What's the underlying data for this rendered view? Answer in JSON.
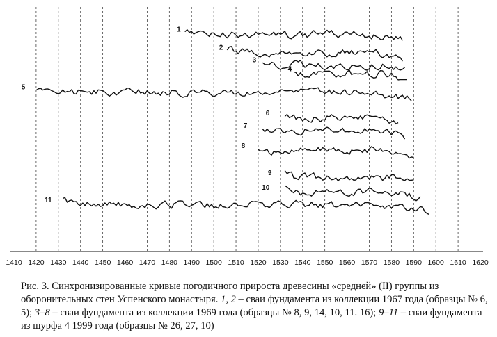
{
  "chart_data": {
    "type": "line",
    "title": "",
    "xlabel": "",
    "ylabel": "",
    "xlim": [
      1410,
      1620
    ],
    "grid": "vertical-dashed",
    "x_ticks": [
      1410,
      1420,
      1430,
      1440,
      1450,
      1460,
      1470,
      1480,
      1490,
      1500,
      1510,
      1520,
      1530,
      1540,
      1550,
      1560,
      1570,
      1580,
      1590,
      1600,
      1610,
      1620
    ],
    "series": [
      {
        "name": "1",
        "start": 1487,
        "end": 1585,
        "level": 0.955,
        "label_x": 1487,
        "color": "#111111"
      },
      {
        "name": "2",
        "start": 1506,
        "end": 1585,
        "level": 0.875,
        "label_x": 1506,
        "color": "#111111"
      },
      {
        "name": "3",
        "start": 1522,
        "end": 1586,
        "level": 0.82,
        "label_x": 1521,
        "color": "#111111"
      },
      {
        "name": "4",
        "start": 1536,
        "end": 1587,
        "level": 0.78,
        "label_x": 1537,
        "color": "#111111"
      },
      {
        "name": "5",
        "start": 1420,
        "end": 1589,
        "level": 0.7,
        "label_x": 1417,
        "color": "#111111"
      },
      {
        "name": "6",
        "start": 1532,
        "end": 1583,
        "level": 0.585,
        "label_x": 1527,
        "color": "#111111"
      },
      {
        "name": "7",
        "start": 1522,
        "end": 1586,
        "level": 0.53,
        "label_x": 1517,
        "color": "#111111"
      },
      {
        "name": "8",
        "start": 1520,
        "end": 1590,
        "level": 0.44,
        "label_x": 1516,
        "color": "#111111"
      },
      {
        "name": "9",
        "start": 1532,
        "end": 1590,
        "level": 0.32,
        "label_x": 1528,
        "color": "#111111"
      },
      {
        "name": "10",
        "start": 1532,
        "end": 1593,
        "level": 0.255,
        "label_x": 1527,
        "color": "#111111"
      },
      {
        "name": "11",
        "start": 1432,
        "end": 1597,
        "level": 0.2,
        "label_x": 1429,
        "color": "#111111"
      }
    ],
    "note_values": "Curves are standardized ring-width indices offset vertically; level is relative vertical position of each curve (0 = bottom of plot, 1 = top)."
  },
  "caption": {
    "part1": "Рис. 3. Синхронизированные кривые погодичного прироста древесины «средней» (II) группы из оборонительных стен Успенского монастыря. ",
    "it1": "1, 2",
    "part2": " – сваи фундамента из коллекции 1967 года (образцы № 6, 5); ",
    "it2": "3–8",
    "part3": " – сваи фундамента из коллекции 1969 года (образцы № 8, 9, 14, 10, 11. 16); ",
    "it3": "9–11",
    "part4": " – сваи фундамента из шурфа 4 1999 года (образцы № 26, 27, 10)"
  }
}
